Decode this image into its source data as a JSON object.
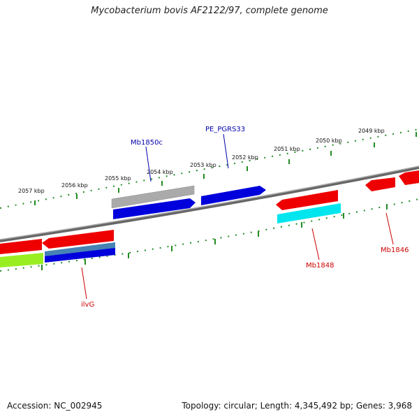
{
  "title": "Mycobacterium bovis AF2122/97, complete genome",
  "footer": {
    "accession": "Accession: NC_002945",
    "summary": "Topology: circular; Length: 4,345,492 bp; Genes: 3,968"
  },
  "scale": {
    "ticks": [
      {
        "label": "2049 kbp",
        "pos": 2049
      },
      {
        "label": "2050 kbp",
        "pos": 2050
      },
      {
        "label": "2051 kbp",
        "pos": 2051
      },
      {
        "label": "2052 kbp",
        "pos": 2052
      },
      {
        "label": "2053 kbp",
        "pos": 2053
      },
      {
        "label": "2054 kbp",
        "pos": 2054
      },
      {
        "label": "2055 kbp",
        "pos": 2055
      },
      {
        "label": "2056 kbp",
        "pos": 2056
      },
      {
        "label": "2057 kbp",
        "pos": 2057
      }
    ]
  },
  "genes": [
    {
      "name": "Mb1850c",
      "color": "#0000aa",
      "side": "above"
    },
    {
      "name": "PE_PGRS33",
      "color": "#0000aa",
      "side": "above"
    },
    {
      "name": "Mb1848",
      "color": "#cc0000",
      "side": "below"
    },
    {
      "name": "Mb1846",
      "color": "#cc0000",
      "side": "below"
    },
    {
      "name": "ilvG",
      "color": "#cc0000",
      "side": "below"
    }
  ],
  "colors": {
    "backbone": "#777777",
    "tick": "#228b22",
    "red": "#ee0000",
    "blue": "#0000dd",
    "gray": "#aaaaaa",
    "cyan": "#00e5ee",
    "green": "#99ee22",
    "steelblue": "#4682b4"
  }
}
